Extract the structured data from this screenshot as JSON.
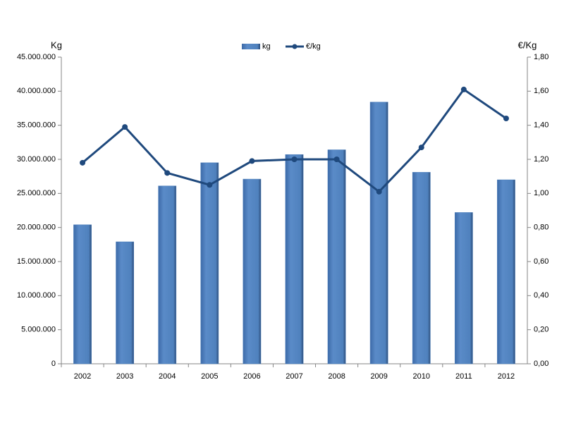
{
  "chart_data": {
    "type": "bar-line",
    "y_label": "Kg",
    "y2_label": "€/Kg",
    "categories": [
      "2002",
      "2003",
      "2004",
      "2005",
      "2006",
      "2007",
      "2008",
      "2009",
      "2010",
      "2011",
      "2012"
    ],
    "series": [
      {
        "name": "kg",
        "type": "bar",
        "color": "#4f81bd",
        "values": [
          20400000,
          17900000,
          26100000,
          29500000,
          27100000,
          30700000,
          31400000,
          38400000,
          28100000,
          22200000,
          27000000
        ]
      },
      {
        "name": "€/kg",
        "type": "line",
        "axis": "y2",
        "color": "#1f497d",
        "values": [
          1.18,
          1.39,
          1.12,
          1.05,
          1.19,
          1.2,
          1.2,
          1.01,
          1.27,
          1.61,
          1.44
        ]
      }
    ],
    "ylim": [
      0,
      45000000
    ],
    "yticks": [
      0,
      {
        "value": 5000000,
        "label": "5.000.000"
      },
      {
        "value": 10000000,
        "label": "10.000.000"
      },
      {
        "value": 15000000,
        "label": "15.000.000"
      },
      {
        "value": 20000000,
        "label": "20.000.000"
      },
      {
        "value": 25000000,
        "label": "25.000.000"
      },
      {
        "value": 30000000,
        "label": "30.000.000"
      },
      {
        "value": 35000000,
        "label": "35.000.000"
      },
      {
        "value": 40000000,
        "label": "40.000.000"
      },
      {
        "value": 45000000,
        "label": "45.000.000"
      }
    ],
    "y2lim": [
      0,
      1.8
    ],
    "y2ticks": [
      {
        "value": 0,
        "label": "0,00"
      },
      {
        "value": 0.2,
        "label": "0,20"
      },
      {
        "value": 0.4,
        "label": "0,40"
      },
      {
        "value": 0.6,
        "label": "0,60"
      },
      {
        "value": 0.8,
        "label": "0,80"
      },
      {
        "value": 1.0,
        "label": "1,00"
      },
      {
        "value": 1.2,
        "label": "1,20"
      },
      {
        "value": 1.4,
        "label": "1,40"
      },
      {
        "value": 1.6,
        "label": "1,60"
      },
      {
        "value": 1.8,
        "label": "1,80"
      }
    ],
    "legend": "top",
    "grid": false
  }
}
